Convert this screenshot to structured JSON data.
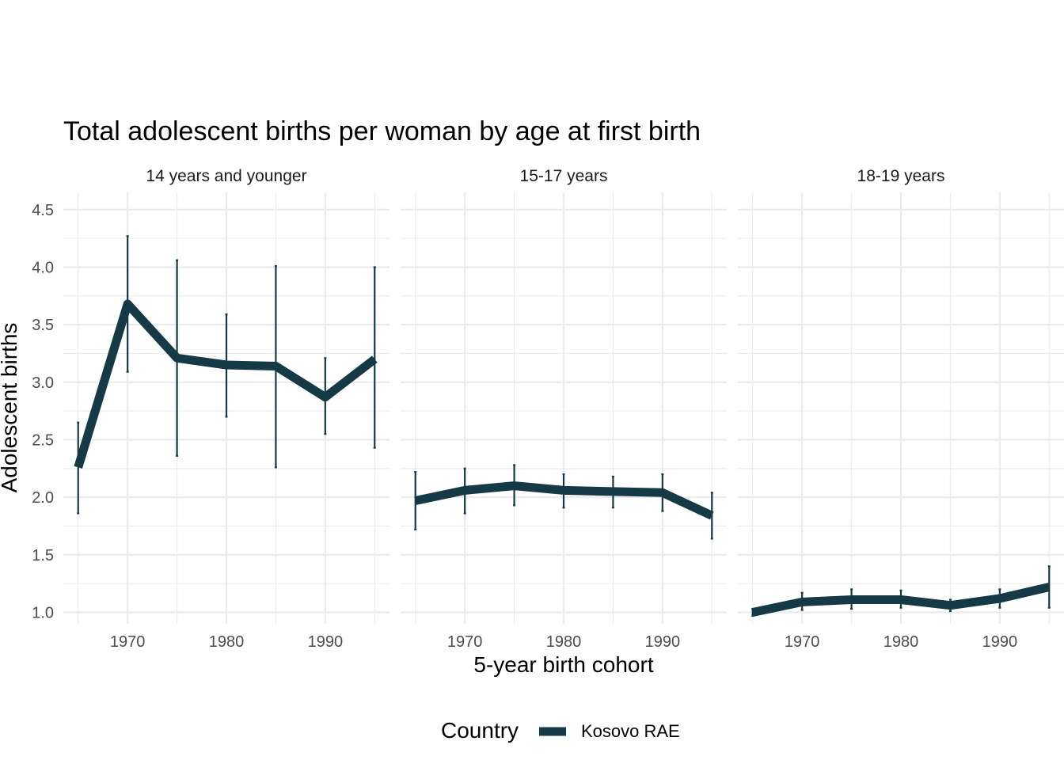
{
  "chart_data": {
    "type": "line",
    "title": "Total adolescent births per woman by age at first birth",
    "xlabel": "5-year birth cohort",
    "ylabel": "Adolescent births",
    "xlim": [
      1963.5,
      1996.5
    ],
    "ylim": [
      0.9,
      4.65
    ],
    "x_ticks": [
      1970,
      1980,
      1990
    ],
    "x_tick_labels": [
      "1970",
      "1980",
      "1990"
    ],
    "y_ticks": [
      1.0,
      1.5,
      2.0,
      2.5,
      3.0,
      3.5,
      4.0,
      4.5
    ],
    "y_tick_labels": [
      "1.0",
      "1.5",
      "2.0",
      "2.5",
      "3.0",
      "3.5",
      "4.0",
      "4.5"
    ],
    "series_color": "#163a45",
    "legend": {
      "title": "Country",
      "entries": [
        "Kosovo RAE"
      ],
      "position": "bottom"
    },
    "panels": [
      {
        "label": "14 years and younger",
        "x": [
          1965,
          1970,
          1975,
          1980,
          1985,
          1990,
          1995
        ],
        "y": [
          2.26,
          3.68,
          3.21,
          3.15,
          3.14,
          2.87,
          3.2
        ],
        "lower": [
          1.86,
          3.09,
          2.36,
          2.7,
          2.26,
          2.55,
          2.43
        ],
        "upper": [
          2.65,
          4.27,
          4.06,
          3.59,
          4.01,
          3.21,
          4.0
        ]
      },
      {
        "label": "15-17 years",
        "x": [
          1965,
          1970,
          1975,
          1980,
          1985,
          1990,
          1995
        ],
        "y": [
          1.97,
          2.06,
          2.1,
          2.06,
          2.05,
          2.04,
          1.84
        ],
        "lower": [
          1.72,
          1.86,
          1.93,
          1.91,
          1.91,
          1.88,
          1.64
        ],
        "upper": [
          2.22,
          2.25,
          2.28,
          2.2,
          2.18,
          2.2,
          2.04
        ]
      },
      {
        "label": "18-19 years",
        "x": [
          1965,
          1970,
          1975,
          1980,
          1985,
          1990,
          1995
        ],
        "y": [
          1.0,
          1.09,
          1.11,
          1.11,
          1.06,
          1.12,
          1.22
        ],
        "lower": [
          0.97,
          1.02,
          1.03,
          1.04,
          1.01,
          1.04,
          1.04
        ],
        "upper": [
          1.03,
          1.17,
          1.2,
          1.19,
          1.11,
          1.2,
          1.4
        ]
      }
    ]
  }
}
